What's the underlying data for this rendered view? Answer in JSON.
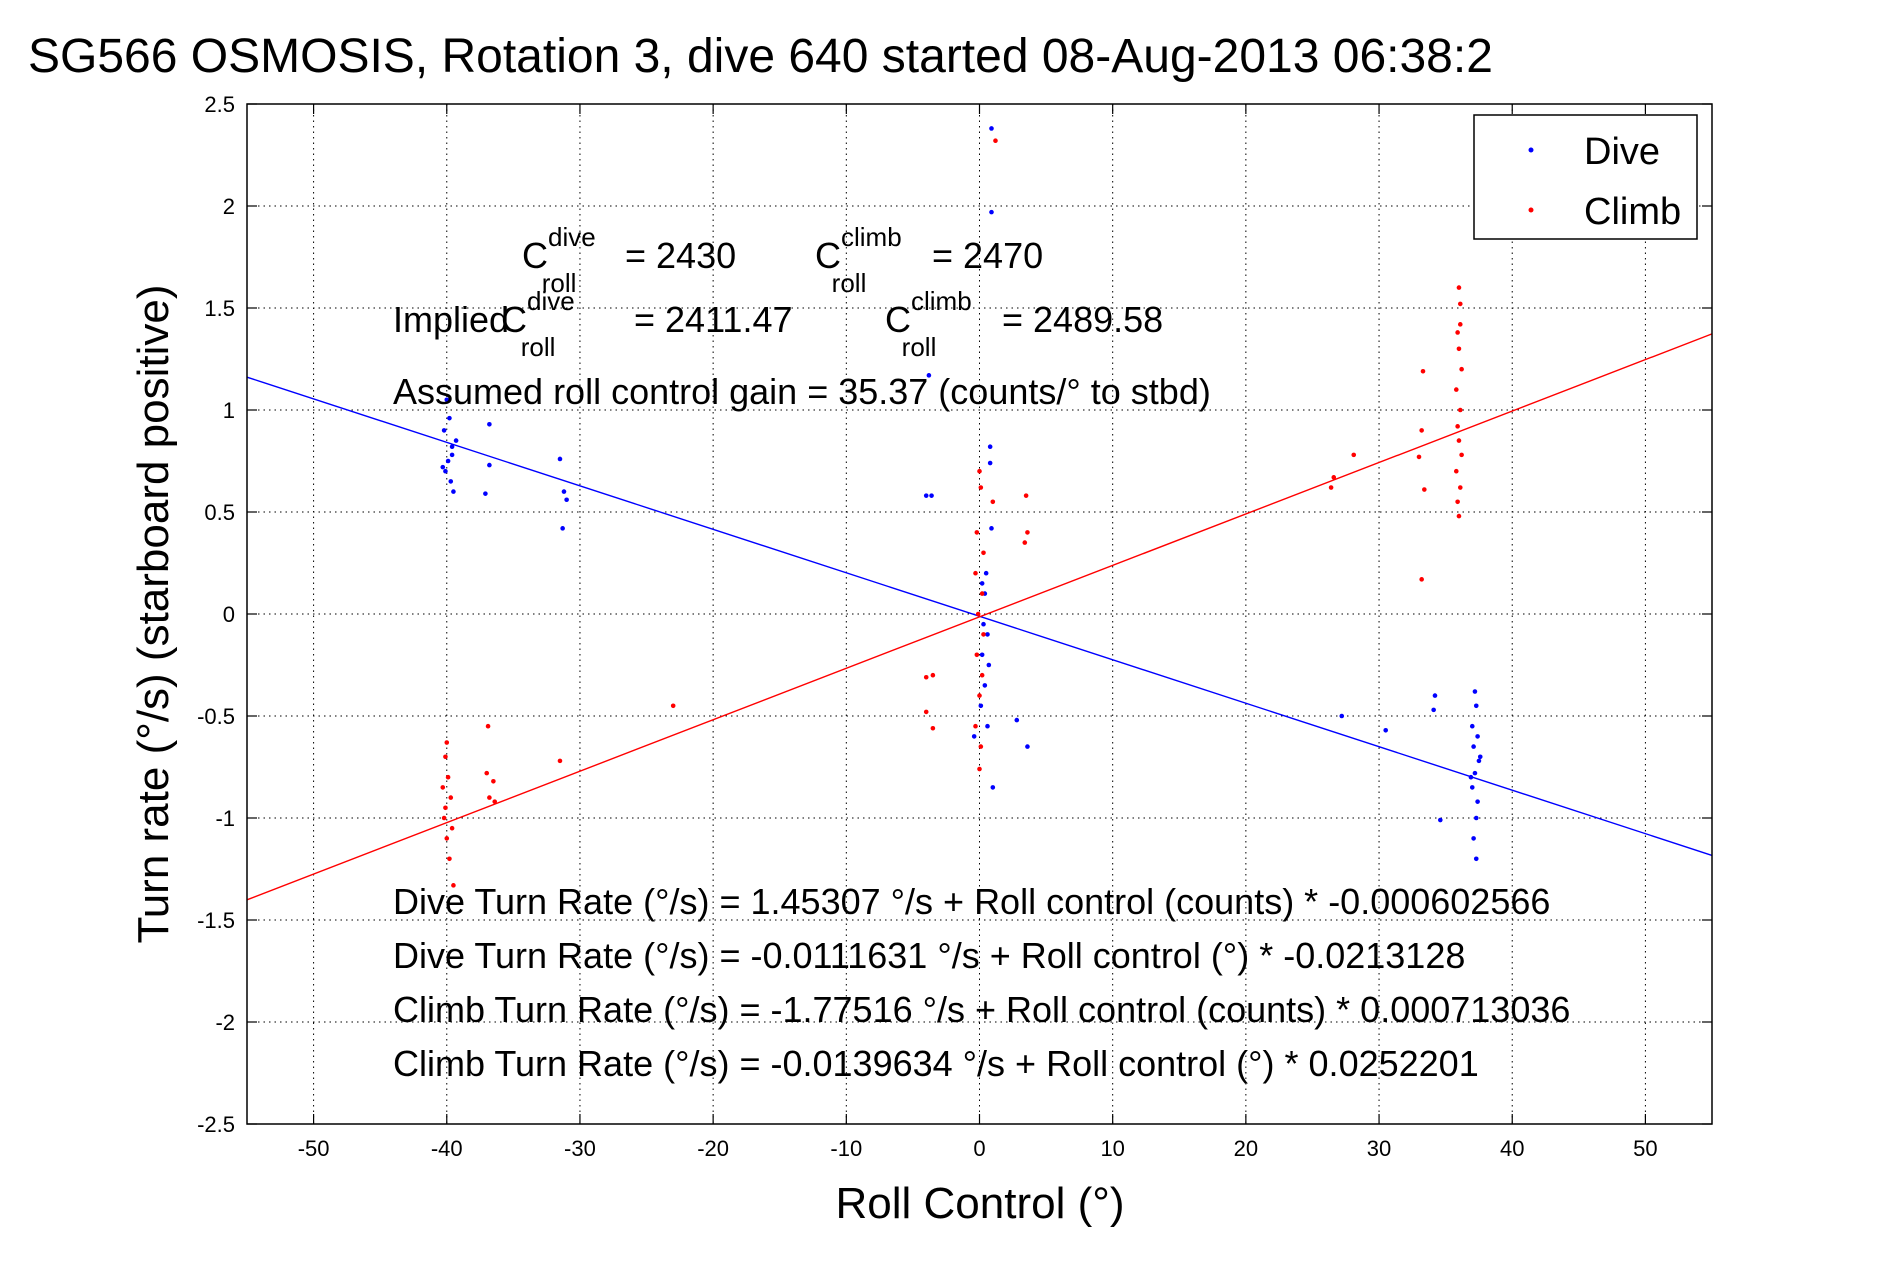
{
  "chart_data": {
    "type": "scatter",
    "title": "SG566 OSMOSIS, Rotation 3, dive 640 started 08-Aug-2013 06:38:2",
    "xlabel": "Roll Control (°)",
    "ylabel": "Turn rate (°/s)  (starboard positive)",
    "xlim": [
      -55,
      55
    ],
    "ylim": [
      -2.5,
      2.5
    ],
    "xticks": [
      -50,
      -40,
      -30,
      -20,
      -10,
      0,
      10,
      20,
      30,
      40,
      50
    ],
    "yticks": [
      -2.5,
      -2,
      -1.5,
      -1,
      -0.5,
      0,
      0.5,
      1,
      1.5,
      2,
      2.5
    ],
    "grid": true,
    "legend_position": "top-right",
    "colors": {
      "dive": "#0000ff",
      "climb": "#ff0000"
    },
    "series": [
      {
        "name": "Dive",
        "color": "#0000ff",
        "points": [
          [
            0.9,
            2.38
          ],
          [
            0.9,
            1.97
          ],
          [
            0.9,
            0.42
          ],
          [
            0.2,
            0.15
          ],
          [
            0.5,
            0.2
          ],
          [
            0.4,
            0.1
          ],
          [
            0.3,
            -0.05
          ],
          [
            0.6,
            -0.1
          ],
          [
            0.2,
            -0.2
          ],
          [
            0.7,
            -0.25
          ],
          [
            0.4,
            -0.35
          ],
          [
            0.1,
            -0.45
          ],
          [
            0.6,
            -0.55
          ],
          [
            -0.4,
            -0.6
          ],
          [
            1.0,
            -0.85
          ],
          [
            2.8,
            -0.52
          ],
          [
            3.6,
            -0.65
          ],
          [
            -4.0,
            0.58
          ],
          [
            -3.6,
            0.58
          ],
          [
            0.8,
            0.82
          ],
          [
            -3.8,
            1.17
          ],
          [
            0.8,
            0.74
          ],
          [
            -40,
            1.05
          ],
          [
            -39.8,
            0.96
          ],
          [
            -39.6,
            0.82
          ],
          [
            -39.9,
            0.75
          ],
          [
            -40.1,
            0.7
          ],
          [
            -39.7,
            0.65
          ],
          [
            -39.5,
            0.6
          ],
          [
            -39.3,
            0.85
          ],
          [
            -40.2,
            0.9
          ],
          [
            -39.6,
            0.78
          ],
          [
            -40.3,
            0.72
          ],
          [
            -36.8,
            0.93
          ],
          [
            -36.8,
            0.73
          ],
          [
            -37.1,
            0.59
          ],
          [
            -31.5,
            0.76
          ],
          [
            -31.2,
            0.6
          ],
          [
            -31.3,
            0.42
          ],
          [
            -31.0,
            0.56
          ],
          [
            27.2,
            -0.5
          ],
          [
            30.5,
            -0.57
          ],
          [
            34.2,
            -0.4
          ],
          [
            34.1,
            -0.47
          ],
          [
            34.6,
            -1.01
          ],
          [
            37.2,
            -0.38
          ],
          [
            37.3,
            -0.45
          ],
          [
            37.0,
            -0.55
          ],
          [
            37.4,
            -0.6
          ],
          [
            37.1,
            -0.65
          ],
          [
            37.5,
            -0.72
          ],
          [
            37.2,
            -0.78
          ],
          [
            37.0,
            -0.85
          ],
          [
            37.4,
            -0.92
          ],
          [
            37.3,
            -1.0
          ],
          [
            37.1,
            -1.1
          ],
          [
            37.3,
            -1.2
          ],
          [
            36.9,
            -0.8
          ],
          [
            37.6,
            -0.7
          ]
        ]
      },
      {
        "name": "Climb",
        "color": "#ff0000",
        "points": [
          [
            1.2,
            2.32
          ],
          [
            0.0,
            0.7
          ],
          [
            0.1,
            0.62
          ],
          [
            1.0,
            0.55
          ],
          [
            -0.2,
            0.4
          ],
          [
            0.3,
            0.3
          ],
          [
            -0.3,
            0.2
          ],
          [
            0.2,
            0.1
          ],
          [
            -0.1,
            0.0
          ],
          [
            0.3,
            -0.1
          ],
          [
            -0.2,
            -0.2
          ],
          [
            0.2,
            -0.3
          ],
          [
            0.0,
            -0.4
          ],
          [
            -0.3,
            -0.55
          ],
          [
            0.1,
            -0.65
          ],
          [
            0.0,
            -0.76
          ],
          [
            -3.5,
            -0.3
          ],
          [
            -4.0,
            -0.31
          ],
          [
            -4.0,
            -0.48
          ],
          [
            -3.5,
            -0.56
          ],
          [
            3.5,
            0.58
          ],
          [
            3.6,
            0.4
          ],
          [
            3.4,
            0.35
          ],
          [
            -23,
            -0.45
          ],
          [
            -31.5,
            -0.72
          ],
          [
            -36.9,
            -0.55
          ],
          [
            -37.0,
            -0.78
          ],
          [
            -36.5,
            -0.82
          ],
          [
            -36.8,
            -0.9
          ],
          [
            -36.4,
            -0.92
          ],
          [
            -40.0,
            -0.63
          ],
          [
            -40.1,
            -0.7
          ],
          [
            -39.9,
            -0.8
          ],
          [
            -39.7,
            -0.9
          ],
          [
            -40.2,
            -1.0
          ],
          [
            -40.0,
            -1.1
          ],
          [
            -39.8,
            -1.2
          ],
          [
            -40.1,
            -0.95
          ],
          [
            -39.6,
            -1.05
          ],
          [
            -40.3,
            -0.85
          ],
          [
            -39.5,
            -1.33
          ],
          [
            26.4,
            0.62
          ],
          [
            26.6,
            0.67
          ],
          [
            28.1,
            0.78
          ],
          [
            33.3,
            1.19
          ],
          [
            33.2,
            0.9
          ],
          [
            33.0,
            0.77
          ],
          [
            33.4,
            0.61
          ],
          [
            33.2,
            0.17
          ],
          [
            36.0,
            1.6
          ],
          [
            36.1,
            1.52
          ],
          [
            35.9,
            1.38
          ],
          [
            36.0,
            1.3
          ],
          [
            36.2,
            1.2
          ],
          [
            35.8,
            1.1
          ],
          [
            36.1,
            1.0
          ],
          [
            35.9,
            0.92
          ],
          [
            36.0,
            0.85
          ],
          [
            36.2,
            0.78
          ],
          [
            35.8,
            0.7
          ],
          [
            36.1,
            0.62
          ],
          [
            35.9,
            0.55
          ],
          [
            36.0,
            0.48
          ],
          [
            36.1,
            1.42
          ]
        ]
      }
    ],
    "fit_lines": [
      {
        "name": "Dive",
        "color": "#0000ff",
        "intercept": -0.0111631,
        "slope": -0.0213128
      },
      {
        "name": "Climb",
        "color": "#ff0000",
        "intercept": -0.0139634,
        "slope": 0.0252201
      }
    ],
    "annotations": {
      "c_roll_dive": "2430",
      "c_roll_climb": "2470",
      "implied_label": "Implied",
      "implied_c_roll_dive": "2411.47",
      "implied_c_roll_climb": "2489.58",
      "gain": "Assumed roll control gain = 35.37 (counts/° to stbd)",
      "eq1": "Dive Turn Rate (°/s) = 1.45307 °/s + Roll control (counts) * -0.000602566",
      "eq2": "Dive Turn Rate (°/s) = -0.0111631 °/s + Roll control (°) * -0.0213128",
      "eq3": "Climb Turn Rate (°/s) = -1.77516 °/s + Roll control (counts) * 0.000713036",
      "eq4": "Climb Turn Rate (°/s) = -0.0139634 °/s + Roll control (°) * 0.0252201"
    }
  }
}
